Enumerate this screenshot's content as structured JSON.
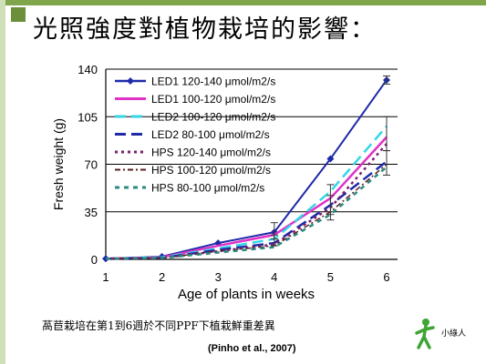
{
  "slide": {
    "title": "光照強度對植物栽培的影響：",
    "caption": "萵苣栽培在第1到6週於不同PPF下植栽鮮重差異",
    "citation": "(Pinho et al., 2007)",
    "logo_text": "小綠人"
  },
  "colors": {
    "accent_bar": "#7fa64a",
    "side_bar": "#cfe0b8",
    "title_box": "#6b8f3a"
  },
  "chart_data": {
    "type": "line",
    "title": "",
    "xlabel": "Age of plants in weeks",
    "ylabel": "Fresh weight (g)",
    "x": [
      1,
      2,
      3,
      4,
      5,
      6
    ],
    "xlim": [
      1,
      6
    ],
    "ylim": [
      0,
      140
    ],
    "x_ticks": [
      "1",
      "2",
      "3",
      "4",
      "5",
      "6"
    ],
    "y_ticks": [
      "0",
      "35",
      "70",
      "105",
      "140"
    ],
    "grid": "horizontal",
    "legend_position": "top-left",
    "series": [
      {
        "name": "LED1 120-140 μmol/m2/s",
        "values": [
          0.5,
          2,
          12,
          20,
          74,
          132
        ],
        "color": "#1f2aa8",
        "dash": "solid",
        "marker": "diamond",
        "width": 2
      },
      {
        "name": "LED1 100-120 μmol/m2/s",
        "values": [
          0.5,
          1.5,
          10,
          18,
          45,
          90
        ],
        "color": "#e032c8",
        "dash": "solid",
        "marker": "none",
        "width": 2.5
      },
      {
        "name": "LED2 100-120 μmol/m2/s",
        "values": [
          0.5,
          1.5,
          8,
          15,
          50,
          98
        ],
        "color": "#33d6e6",
        "dash": "longdash",
        "marker": "none",
        "width": 2.5
      },
      {
        "name": "LED2 80-100 μmol/m2/s",
        "values": [
          0.5,
          1,
          7,
          12,
          40,
          72
        ],
        "color": "#1f2aa8",
        "dash": "longdash",
        "marker": "none",
        "width": 2.5
      },
      {
        "name": "HPS 120-140 μmol/m2/s",
        "values": [
          0.5,
          1,
          6,
          11,
          38,
          85
        ],
        "color": "#7a1f6e",
        "dash": "dotted",
        "marker": "none",
        "width": 2.5
      },
      {
        "name": "HPS 100-120 μmol/m2/s",
        "values": [
          0.5,
          1,
          6,
          10,
          35,
          70
        ],
        "color": "#5a1f1f",
        "dash": "dashdot",
        "marker": "none",
        "width": 1.5
      },
      {
        "name": "HPS 80-100 μmol/m2/s",
        "values": [
          0.5,
          1,
          5,
          9,
          33,
          68
        ],
        "color": "#2a8a80",
        "dash": "shortdash",
        "marker": "none",
        "width": 2.5
      }
    ],
    "error_bars": [
      {
        "x": 4,
        "low": 15,
        "high": 27
      },
      {
        "x": 4,
        "low": 10,
        "high": 18
      },
      {
        "x": 5,
        "low": 33,
        "high": 55
      },
      {
        "x": 5,
        "low": 29,
        "high": 47
      },
      {
        "x": 6,
        "low": 129,
        "high": 135
      },
      {
        "x": 6,
        "low": 80,
        "high": 105
      },
      {
        "x": 6,
        "low": 62,
        "high": 80
      }
    ]
  }
}
